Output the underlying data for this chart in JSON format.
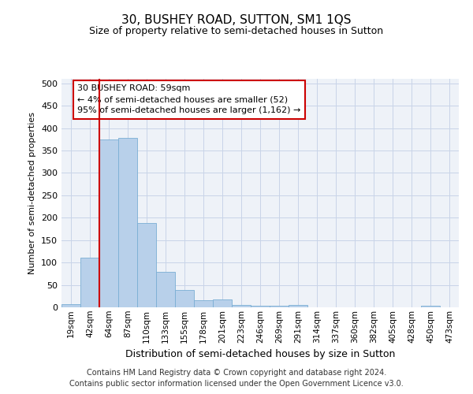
{
  "title": "30, BUSHEY ROAD, SUTTON, SM1 1QS",
  "subtitle": "Size of property relative to semi-detached houses in Sutton",
  "xlabel": "Distribution of semi-detached houses by size in Sutton",
  "ylabel": "Number of semi-detached properties",
  "categories": [
    "19sqm",
    "42sqm",
    "64sqm",
    "87sqm",
    "110sqm",
    "133sqm",
    "155sqm",
    "178sqm",
    "201sqm",
    "223sqm",
    "246sqm",
    "269sqm",
    "291sqm",
    "314sqm",
    "337sqm",
    "360sqm",
    "382sqm",
    "405sqm",
    "428sqm",
    "450sqm",
    "473sqm"
  ],
  "values": [
    7,
    110,
    375,
    378,
    188,
    80,
    38,
    16,
    18,
    6,
    4,
    3,
    5,
    0,
    0,
    0,
    0,
    0,
    0,
    4,
    0
  ],
  "bar_color": "#b8d0ea",
  "bar_edge_color": "#7aaed4",
  "vline_color": "#cc0000",
  "vline_x_index": 2,
  "annotation_title": "30 BUSHEY ROAD: 59sqm",
  "annotation_line1": "← 4% of semi-detached houses are smaller (52)",
  "annotation_line2": "95% of semi-detached houses are larger (1,162) →",
  "annotation_box_color": "#ffffff",
  "annotation_border_color": "#cc0000",
  "ylim": [
    0,
    510
  ],
  "yticks": [
    0,
    50,
    100,
    150,
    200,
    250,
    300,
    350,
    400,
    450,
    500
  ],
  "grid_color": "#c8d4e8",
  "bg_color": "#eef2f8",
  "title_fontsize": 11,
  "subtitle_fontsize": 9,
  "xlabel_fontsize": 9,
  "ylabel_fontsize": 8,
  "footnote1": "Contains HM Land Registry data © Crown copyright and database right 2024.",
  "footnote2": "Contains public sector information licensed under the Open Government Licence v3.0."
}
